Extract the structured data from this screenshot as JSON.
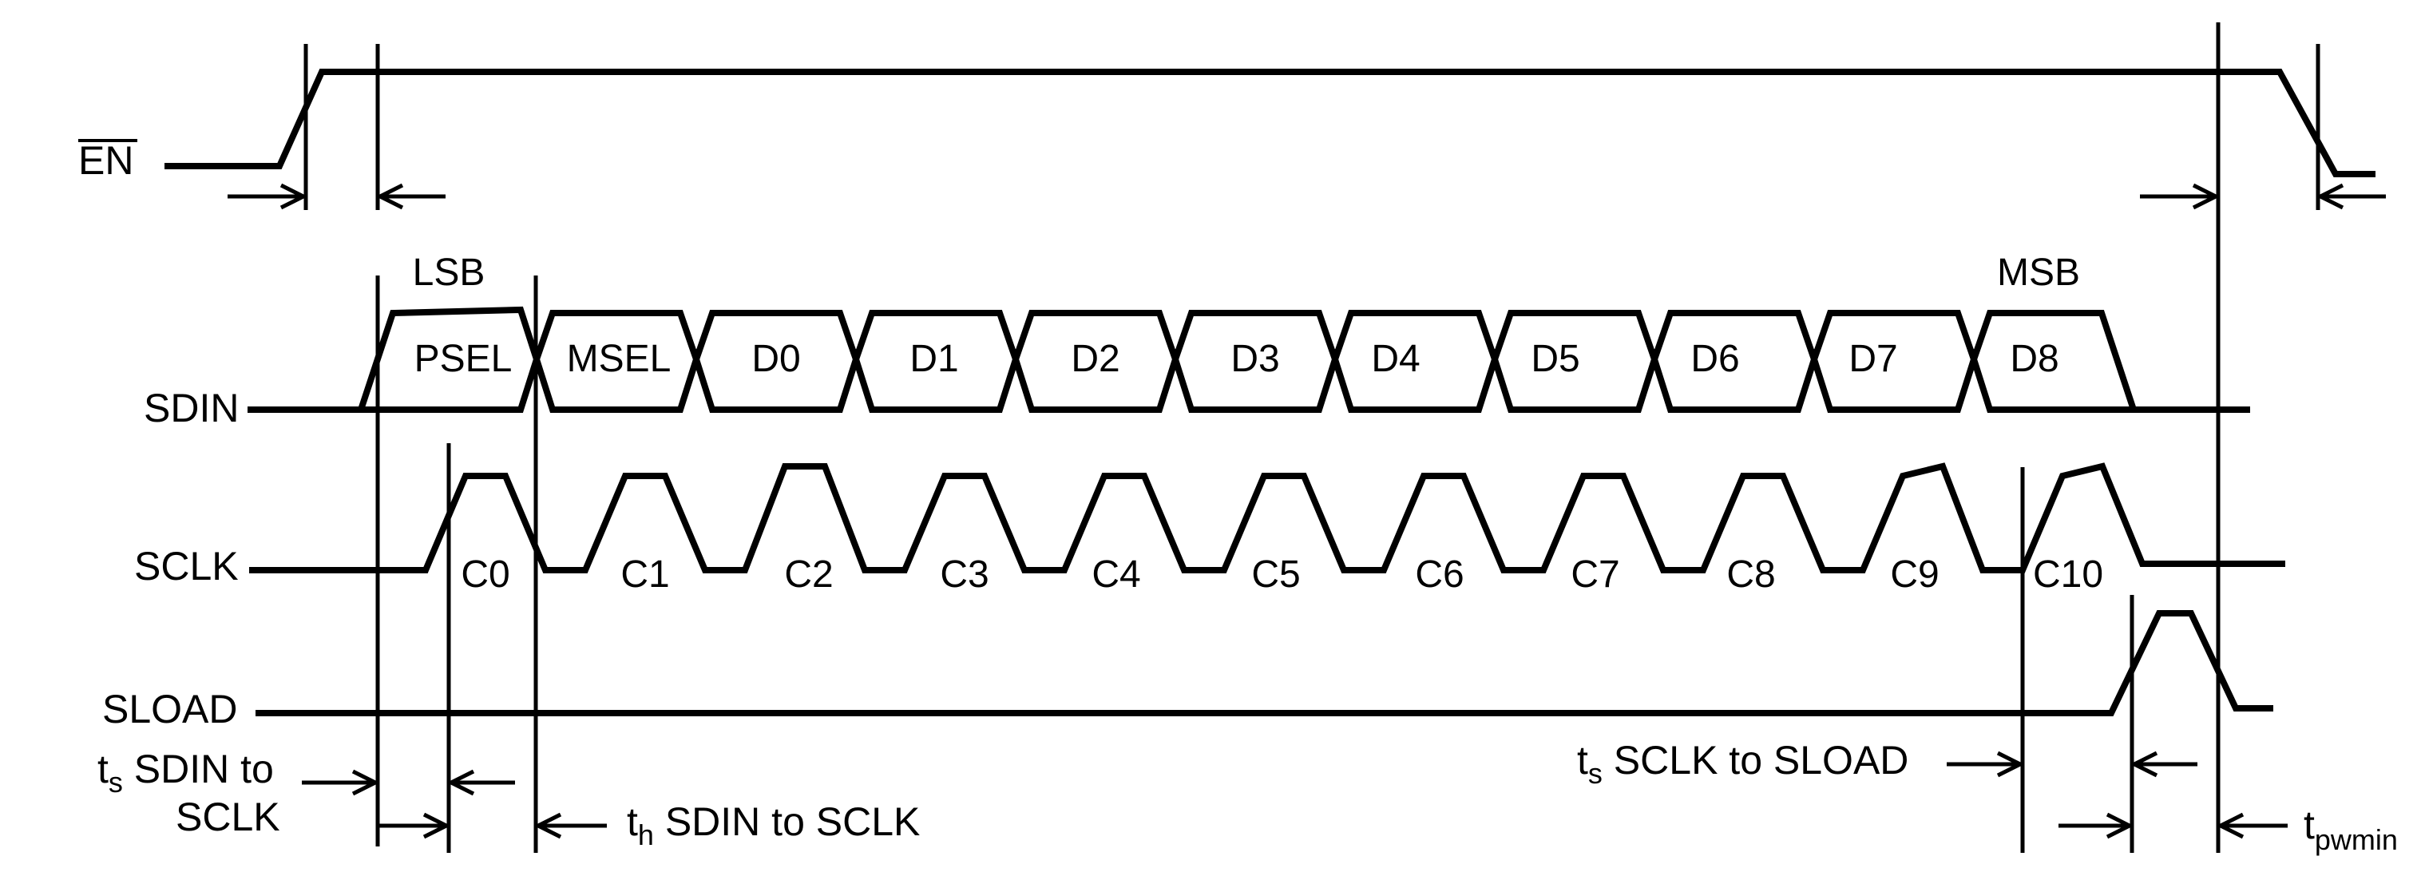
{
  "signals": {
    "en": "EN",
    "sdin": "SDIN",
    "sclk": "SCLK",
    "sload": "SLOAD"
  },
  "bits": {
    "lsb": "LSB",
    "msb": "MSB"
  },
  "sdin_cells": [
    "PSEL",
    "MSEL",
    "D0",
    "D1",
    "D2",
    "D3",
    "D4",
    "D5",
    "D6",
    "D7",
    "D8"
  ],
  "sclk_cycles": [
    "C0",
    "C1",
    "C2",
    "C3",
    "C4",
    "C5",
    "C6",
    "C7",
    "C8",
    "C9",
    "C10"
  ],
  "timing": {
    "ts_sdin_main": "t",
    "ts_sdin_sub": "s",
    "ts_sdin_line1": " SDIN to",
    "ts_sdin_line2": "SCLK",
    "th_sdin_main": "t",
    "th_sdin_sub": "h",
    "th_sdin_rest": " SDIN to SCLK",
    "ts_sload_main": "t",
    "ts_sload_sub": "s",
    "ts_sload_rest": " SCLK to SLOAD",
    "tpw_main": "t",
    "tpw_sub": "pwmin"
  }
}
